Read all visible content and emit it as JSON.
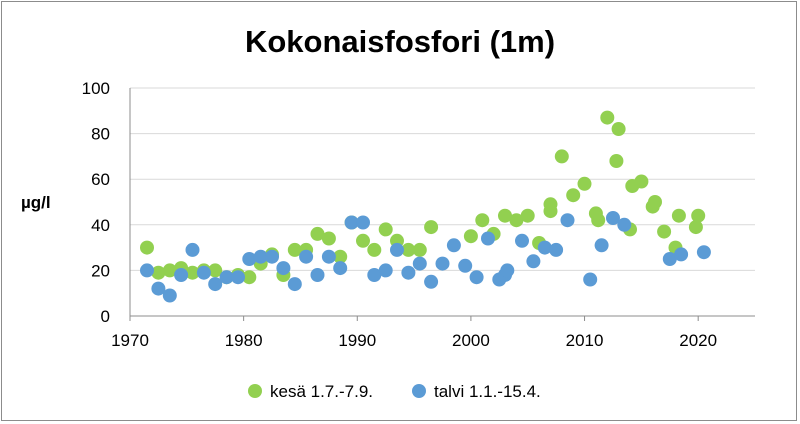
{
  "chart_data": {
    "type": "scatter",
    "title": "Kokonaisfosfori (1m)",
    "xlabel": "",
    "ylabel": "µg/l",
    "xlim": [
      1970,
      2025
    ],
    "ylim": [
      0,
      100
    ],
    "xticks": [
      "1970",
      "1980",
      "1990",
      "2000",
      "2010",
      "2020"
    ],
    "yticks": [
      "0",
      "20",
      "40",
      "60",
      "80",
      "100"
    ],
    "grid": "horizontal",
    "legend_position": "bottom",
    "series": [
      {
        "name": "kesä 1.7.-7.9.",
        "color": "#92d050",
        "points": [
          [
            1971.5,
            30
          ],
          [
            1972.5,
            19
          ],
          [
            1973.5,
            20
          ],
          [
            1974.5,
            21
          ],
          [
            1975.5,
            19
          ],
          [
            1976.5,
            20
          ],
          [
            1977.5,
            20
          ],
          [
            1978.5,
            17
          ],
          [
            1979.5,
            18
          ],
          [
            1980.5,
            17
          ],
          [
            1981.5,
            23
          ],
          [
            1982.5,
            27
          ],
          [
            1983.5,
            18
          ],
          [
            1984.5,
            29
          ],
          [
            1985.5,
            29
          ],
          [
            1986.5,
            36
          ],
          [
            1987.5,
            34
          ],
          [
            1988.5,
            26
          ],
          [
            1989.5,
            41
          ],
          [
            1990.5,
            33
          ],
          [
            1991.5,
            29
          ],
          [
            1992.5,
            38
          ],
          [
            1993.5,
            33
          ],
          [
            1994.5,
            29
          ],
          [
            1995.5,
            29
          ],
          [
            1996.5,
            39
          ],
          [
            2000,
            35
          ],
          [
            2001,
            42
          ],
          [
            2002,
            36
          ],
          [
            2003,
            44
          ],
          [
            2004,
            42
          ],
          [
            2005,
            44
          ],
          [
            2006,
            32
          ],
          [
            2007,
            46
          ],
          [
            2007,
            49
          ],
          [
            2008,
            70
          ],
          [
            2009,
            53
          ],
          [
            2010,
            58
          ],
          [
            2011,
            45
          ],
          [
            2011.2,
            42
          ],
          [
            2012,
            87
          ],
          [
            2012.8,
            68
          ],
          [
            2013,
            82
          ],
          [
            2014,
            38
          ],
          [
            2014.2,
            57
          ],
          [
            2015,
            59
          ],
          [
            2016,
            48
          ],
          [
            2016.2,
            50
          ],
          [
            2017,
            37
          ],
          [
            2018,
            30
          ],
          [
            2018.3,
            44
          ],
          [
            2019.8,
            39
          ],
          [
            2020,
            44
          ]
        ]
      },
      {
        "name": "talvi 1.1.-15.4.",
        "color": "#5b9bd5",
        "points": [
          [
            1971.5,
            20
          ],
          [
            1972.5,
            12
          ],
          [
            1973.5,
            9
          ],
          [
            1974.5,
            18
          ],
          [
            1975.5,
            29
          ],
          [
            1976.5,
            19
          ],
          [
            1977.5,
            14
          ],
          [
            1978.5,
            17
          ],
          [
            1979.5,
            17
          ],
          [
            1980.5,
            25
          ],
          [
            1981.5,
            26
          ],
          [
            1982.5,
            26
          ],
          [
            1983.5,
            21
          ],
          [
            1984.5,
            14
          ],
          [
            1985.5,
            26
          ],
          [
            1986.5,
            18
          ],
          [
            1987.5,
            26
          ],
          [
            1988.5,
            21
          ],
          [
            1989.5,
            41
          ],
          [
            1990.5,
            41
          ],
          [
            1991.5,
            18
          ],
          [
            1992.5,
            20
          ],
          [
            1993.5,
            29
          ],
          [
            1994.5,
            19
          ],
          [
            1995.5,
            23
          ],
          [
            1996.5,
            15
          ],
          [
            1997.5,
            23
          ],
          [
            1998.5,
            31
          ],
          [
            1999.5,
            22
          ],
          [
            2000.5,
            17
          ],
          [
            2001.5,
            34
          ],
          [
            2002.5,
            16
          ],
          [
            2003,
            18
          ],
          [
            2003.2,
            20
          ],
          [
            2004.5,
            33
          ],
          [
            2005.5,
            24
          ],
          [
            2006.5,
            30
          ],
          [
            2007.5,
            29
          ],
          [
            2008.5,
            42
          ],
          [
            2010.5,
            16
          ],
          [
            2011.5,
            31
          ],
          [
            2012.5,
            43
          ],
          [
            2013.5,
            40
          ],
          [
            2017.5,
            25
          ],
          [
            2018.5,
            27
          ],
          [
            2020.5,
            28
          ]
        ]
      }
    ]
  }
}
